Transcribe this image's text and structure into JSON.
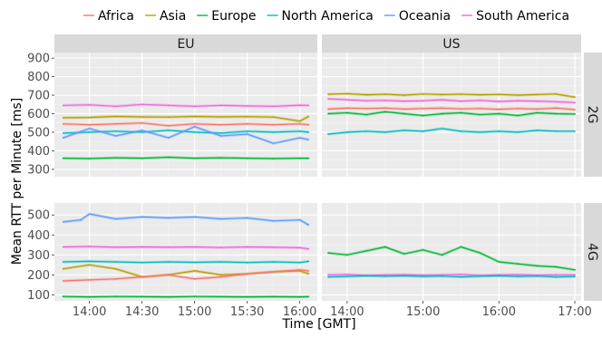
{
  "chart_data": {
    "type": "line",
    "xlabel": "Time [GMT]",
    "ylabel": "Mean RTT per Minute [ms]",
    "legend": {
      "placement": "top",
      "entries": [
        {
          "name": "Africa",
          "color": "#F8766D"
        },
        {
          "name": "Asia",
          "color": "#B79F00"
        },
        {
          "name": "Europe",
          "color": "#00BA38"
        },
        {
          "name": "North America",
          "color": "#00BFC4"
        },
        {
          "name": "Oceania",
          "color": "#619CFF"
        },
        {
          "name": "South America",
          "color": "#F564E3"
        }
      ]
    },
    "columns": [
      "EU",
      "US"
    ],
    "rows": [
      "2G",
      "4G"
    ],
    "x_axes": {
      "EU": {
        "xlim": [
          "13:40",
          "16:10"
        ],
        "ticks": [
          "14:00",
          "14:30",
          "15:00",
          "15:30",
          "16:00"
        ]
      },
      "US": {
        "xlim": [
          "13:40",
          "17:05"
        ],
        "ticks": [
          "14:00",
          "15:00",
          "16:00",
          "17:00"
        ]
      }
    },
    "y_axes": {
      "2G": {
        "ylim": [
          260,
          930
        ],
        "ticks": [
          300,
          400,
          500,
          600,
          700,
          800,
          900
        ]
      },
      "4G": {
        "ylim": [
          70,
          560
        ],
        "ticks": [
          100,
          200,
          300,
          400,
          500
        ]
      }
    },
    "grid": true,
    "panels": [
      {
        "column": "EU",
        "row": "2G",
        "series": [
          {
            "name": "South America",
            "x": [
              "13:45",
              "14:00",
              "14:15",
              "14:30",
              "14:45",
              "15:00",
              "15:15",
              "15:30",
              "15:45",
              "16:00",
              "16:05"
            ],
            "y": [
              645,
              648,
              640,
              650,
              645,
              640,
              645,
              642,
              640,
              646,
              645
            ]
          },
          {
            "name": "Asia",
            "x": [
              "13:45",
              "14:00",
              "14:15",
              "14:30",
              "14:45",
              "15:00",
              "15:15",
              "15:30",
              "15:45",
              "16:00",
              "16:05"
            ],
            "y": [
              578,
              580,
              585,
              583,
              582,
              585,
              583,
              584,
              582,
              560,
              585
            ]
          },
          {
            "name": "Africa",
            "x": [
              "13:45",
              "14:00",
              "14:15",
              "14:30",
              "14:45",
              "15:00",
              "15:15",
              "15:30",
              "15:45",
              "16:00",
              "16:05"
            ],
            "y": [
              545,
              540,
              545,
              550,
              535,
              545,
              540,
              545,
              540,
              545,
              540
            ]
          },
          {
            "name": "North America",
            "x": [
              "13:45",
              "14:00",
              "14:15",
              "14:30",
              "14:45",
              "15:00",
              "15:15",
              "15:30",
              "15:45",
              "16:00",
              "16:05"
            ],
            "y": [
              495,
              500,
              505,
              500,
              510,
              500,
              495,
              505,
              500,
              505,
              500
            ]
          },
          {
            "name": "Oceania",
            "x": [
              "13:45",
              "14:00",
              "14:15",
              "14:30",
              "14:45",
              "15:00",
              "15:15",
              "15:30",
              "15:45",
              "16:00",
              "16:05"
            ],
            "y": [
              470,
              520,
              480,
              510,
              470,
              530,
              480,
              490,
              440,
              470,
              460
            ]
          },
          {
            "name": "Europe",
            "x": [
              "13:45",
              "14:00",
              "14:15",
              "14:30",
              "14:45",
              "15:00",
              "15:15",
              "15:30",
              "15:45",
              "16:00",
              "16:05"
            ],
            "y": [
              360,
              358,
              362,
              360,
              365,
              360,
              362,
              360,
              358,
              360,
              360
            ]
          }
        ]
      },
      {
        "column": "US",
        "row": "2G",
        "series": [
          {
            "name": "Asia",
            "x": [
              "13:45",
              "14:00",
              "14:15",
              "14:30",
              "14:45",
              "15:00",
              "15:15",
              "15:30",
              "15:45",
              "16:00",
              "16:15",
              "16:30",
              "16:45",
              "17:00"
            ],
            "y": [
              705,
              708,
              702,
              705,
              700,
              706,
              703,
              705,
              702,
              704,
              700,
              703,
              706,
              690
            ]
          },
          {
            "name": "South America",
            "x": [
              "13:45",
              "14:00",
              "14:15",
              "14:30",
              "14:45",
              "15:00",
              "15:15",
              "15:30",
              "15:45",
              "16:00",
              "16:15",
              "16:30",
              "16:45",
              "17:00"
            ],
            "y": [
              680,
              675,
              670,
              672,
              668,
              670,
              675,
              668,
              672,
              666,
              670,
              668,
              665,
              660
            ]
          },
          {
            "name": "Africa",
            "x": [
              "13:45",
              "14:00",
              "14:15",
              "14:30",
              "14:45",
              "15:00",
              "15:15",
              "15:30",
              "15:45",
              "16:00",
              "16:15",
              "16:30",
              "16:45",
              "17:00"
            ],
            "y": [
              625,
              630,
              628,
              630,
              625,
              628,
              630,
              626,
              628,
              624,
              628,
              625,
              630,
              622
            ]
          },
          {
            "name": "Europe",
            "x": [
              "13:45",
              "14:00",
              "14:15",
              "14:30",
              "14:45",
              "15:00",
              "15:15",
              "15:30",
              "15:45",
              "16:00",
              "16:15",
              "16:30",
              "16:45",
              "17:00"
            ],
            "y": [
              600,
              605,
              595,
              610,
              600,
              590,
              600,
              605,
              595,
              600,
              590,
              605,
              600,
              598
            ]
          },
          {
            "name": "North America",
            "x": [
              "13:45",
              "14:00",
              "14:15",
              "14:30",
              "14:45",
              "15:00",
              "15:15",
              "15:30",
              "15:45",
              "16:00",
              "16:15",
              "16:30",
              "16:45",
              "17:00"
            ],
            "y": [
              490,
              500,
              505,
              500,
              510,
              505,
              520,
              505,
              500,
              505,
              500,
              510,
              505,
              505
            ]
          }
        ]
      },
      {
        "column": "EU",
        "row": "4G",
        "series": [
          {
            "name": "Oceania",
            "x": [
              "13:45",
              "13:55",
              "14:00",
              "14:15",
              "14:30",
              "14:45",
              "15:00",
              "15:15",
              "15:30",
              "15:45",
              "16:00",
              "16:05"
            ],
            "y": [
              465,
              475,
              505,
              480,
              490,
              485,
              490,
              480,
              485,
              470,
              475,
              450
            ]
          },
          {
            "name": "South America",
            "x": [
              "13:45",
              "14:00",
              "14:15",
              "14:30",
              "14:45",
              "15:00",
              "15:15",
              "15:30",
              "15:45",
              "16:00",
              "16:05"
            ],
            "y": [
              340,
              342,
              338,
              340,
              338,
              340,
              337,
              340,
              338,
              336,
              330
            ]
          },
          {
            "name": "North America",
            "x": [
              "13:45",
              "14:00",
              "14:15",
              "14:30",
              "14:45",
              "15:00",
              "15:15",
              "15:30",
              "15:45",
              "16:00",
              "16:05"
            ],
            "y": [
              265,
              268,
              265,
              262,
              265,
              263,
              265,
              262,
              265,
              262,
              268
            ]
          },
          {
            "name": "Asia",
            "x": [
              "13:45",
              "14:00",
              "14:15",
              "14:30",
              "14:45",
              "15:00",
              "15:15",
              "15:30",
              "15:45",
              "16:00",
              "16:05"
            ],
            "y": [
              230,
              250,
              230,
              190,
              200,
              220,
              200,
              205,
              215,
              220,
              205
            ]
          },
          {
            "name": "Africa",
            "x": [
              "13:45",
              "14:00",
              "14:15",
              "14:30",
              "14:45",
              "15:00",
              "15:15",
              "15:30",
              "15:45",
              "16:00",
              "16:05"
            ],
            "y": [
              170,
              175,
              180,
              190,
              200,
              180,
              190,
              205,
              215,
              225,
              220
            ]
          },
          {
            "name": "Europe",
            "x": [
              "13:45",
              "14:00",
              "14:15",
              "14:30",
              "14:45",
              "15:00",
              "15:15",
              "15:30",
              "15:45",
              "16:00",
              "16:05"
            ],
            "y": [
              92,
              90,
              92,
              91,
              90,
              92,
              91,
              90,
              91,
              90,
              91
            ]
          }
        ]
      },
      {
        "column": "US",
        "row": "4G",
        "series": [
          {
            "name": "Europe",
            "x": [
              "13:45",
              "14:00",
              "14:15",
              "14:30",
              "14:45",
              "15:00",
              "15:15",
              "15:30",
              "15:45",
              "16:00",
              "16:15",
              "16:30",
              "16:45",
              "17:00"
            ],
            "y": [
              310,
              300,
              320,
              340,
              305,
              325,
              300,
              340,
              310,
              265,
              255,
              245,
              240,
              225
            ]
          },
          {
            "name": "South America",
            "x": [
              "13:45",
              "14:00",
              "14:15",
              "14:30",
              "14:45",
              "15:00",
              "15:15",
              "15:30",
              "15:45",
              "16:00",
              "16:15",
              "16:30",
              "16:45",
              "17:00"
            ],
            "y": [
              200,
              202,
              198,
              200,
              201,
              199,
              200,
              202,
              198,
              200,
              201,
              199,
              200,
              200
            ]
          },
          {
            "name": "North America",
            "x": [
              "13:45",
              "14:00",
              "14:15",
              "14:30",
              "14:45",
              "15:00",
              "15:15",
              "15:30",
              "15:45",
              "16:00",
              "16:15",
              "16:30",
              "16:45",
              "17:00"
            ],
            "y": [
              190,
              192,
              195,
              193,
              195,
              192,
              194,
              190,
              193,
              195,
              192,
              194,
              190,
              192
            ]
          }
        ]
      }
    ]
  }
}
